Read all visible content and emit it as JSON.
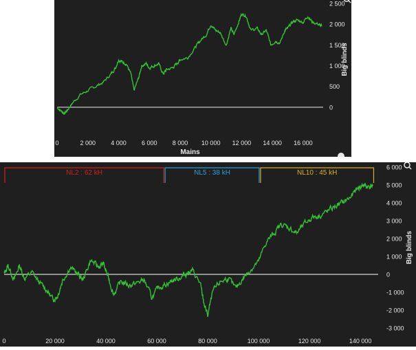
{
  "colors": {
    "background": "#1f1f1f",
    "line": "#34c134",
    "zero_line": "#d8d8d8",
    "axis_text": "#e8e8e8",
    "nl2": "#d41f1f",
    "nl5": "#2aa0d8",
    "nl10": "#d9b11e"
  },
  "icons": [
    "magnifier-icon",
    "help-icon"
  ],
  "chart_data": [
    {
      "type": "line",
      "title": "",
      "xlabel": "Mains",
      "ylabel": "Big blinds",
      "xlim": [
        0,
        17300
      ],
      "ylim": [
        -200,
        2500
      ],
      "x_ticks": [
        "0",
        "2 000",
        "4 000",
        "6 000",
        "8 000",
        "10 000",
        "12 000",
        "14 000",
        "16 000"
      ],
      "x_tick_values": [
        0,
        2000,
        4000,
        6000,
        8000,
        10000,
        12000,
        14000,
        16000
      ],
      "y_ticks": [
        "0",
        "500",
        "1 000",
        "1 500",
        "2 000",
        "2 500"
      ],
      "y_tick_values": [
        0,
        500,
        1000,
        1500,
        2000,
        2500
      ],
      "grid": false,
      "series": [
        {
          "x": [
            0,
            300,
            500,
            700,
            1000,
            1500,
            2000,
            2500,
            3000,
            3500,
            3800,
            4000,
            4200,
            4500,
            4800,
            5000,
            5300,
            5500,
            5800,
            6000,
            6300,
            6600,
            6900,
            7100,
            7500,
            7800,
            8000,
            8500,
            9000,
            9300,
            9700,
            10000,
            10300,
            10600,
            11000,
            11300,
            11500,
            11800,
            12000,
            12300,
            12600,
            13000,
            13300,
            13600,
            13900,
            14200,
            14500,
            14800,
            15000,
            15300,
            15600,
            16000,
            16300,
            16600,
            17000,
            17200
          ],
          "y": [
            0,
            -100,
            -150,
            -50,
            100,
            300,
            400,
            500,
            600,
            800,
            950,
            1150,
            1100,
            1050,
            800,
            400,
            700,
            1000,
            1050,
            950,
            1000,
            1050,
            800,
            900,
            950,
            1050,
            1150,
            1200,
            1450,
            1600,
            1750,
            2000,
            1850,
            1800,
            1500,
            1900,
            1750,
            2050,
            2250,
            2200,
            1850,
            1900,
            1750,
            1850,
            1500,
            1600,
            1550,
            1850,
            1900,
            2050,
            2100,
            2050,
            2200,
            2050,
            2000,
            1950
          ]
        }
      ]
    },
    {
      "type": "line",
      "title": "",
      "xlabel": "",
      "ylabel": "Big blinds",
      "xlim": [
        0,
        147000
      ],
      "ylim": [
        -3000,
        6000
      ],
      "x_ticks": [
        "0",
        "20 000",
        "40 000",
        "60 000",
        "80 000",
        "100 000",
        "120 000",
        "140 000"
      ],
      "x_tick_values": [
        0,
        20000,
        40000,
        60000,
        80000,
        100000,
        120000,
        140000
      ],
      "y_ticks": [
        "-3 000",
        "-2 000",
        "-1 000",
        "0",
        "1 000",
        "2 000",
        "3 000",
        "4 000",
        "5 000",
        "6 000"
      ],
      "y_tick_values": [
        -3000,
        -2000,
        -1000,
        0,
        1000,
        2000,
        3000,
        4000,
        5000,
        6000
      ],
      "grid": false,
      "segments": [
        {
          "label": "NL2 : 62 kH",
          "x_start": 0,
          "x_end": 63000,
          "color_key": "nl2"
        },
        {
          "label": "NL5 : 38 kH",
          "x_start": 63000,
          "x_end": 100500,
          "color_key": "nl5"
        },
        {
          "label": "NL10 : 45 kH",
          "x_start": 100500,
          "x_end": 145500,
          "color_key": "nl10"
        }
      ],
      "series": [
        {
          "x": [
            0,
            1500,
            4000,
            6000,
            8000,
            11000,
            14000,
            17000,
            19000,
            21000,
            23000,
            26000,
            29000,
            31000,
            34000,
            37000,
            39000,
            41000,
            43000,
            46000,
            49000,
            52000,
            55000,
            58000,
            61000,
            64000,
            67000,
            70000,
            72000,
            74000,
            77000,
            78500,
            80000,
            82000,
            85000,
            88000,
            91000,
            94000,
            97000,
            100000,
            103000,
            106000,
            109000,
            112000,
            115000,
            118000,
            121000,
            124000,
            127000,
            130000,
            133000,
            136000,
            139000,
            141000,
            143000,
            145000
          ],
          "y": [
            0,
            500,
            -300,
            500,
            -200,
            100,
            -500,
            -900,
            -1400,
            -1200,
            -300,
            400,
            0,
            -300,
            800,
            400,
            600,
            -200,
            -1100,
            -400,
            -600,
            -500,
            -300,
            -1300,
            -700,
            -500,
            -300,
            -100,
            100,
            200,
            -500,
            -1600,
            -2300,
            -1000,
            -400,
            -200,
            -800,
            -200,
            300,
            700,
            1800,
            2300,
            2800,
            2600,
            2300,
            2800,
            3200,
            3300,
            3500,
            3800,
            4000,
            4300,
            4800,
            5000,
            4900,
            5000
          ]
        }
      ]
    }
  ]
}
